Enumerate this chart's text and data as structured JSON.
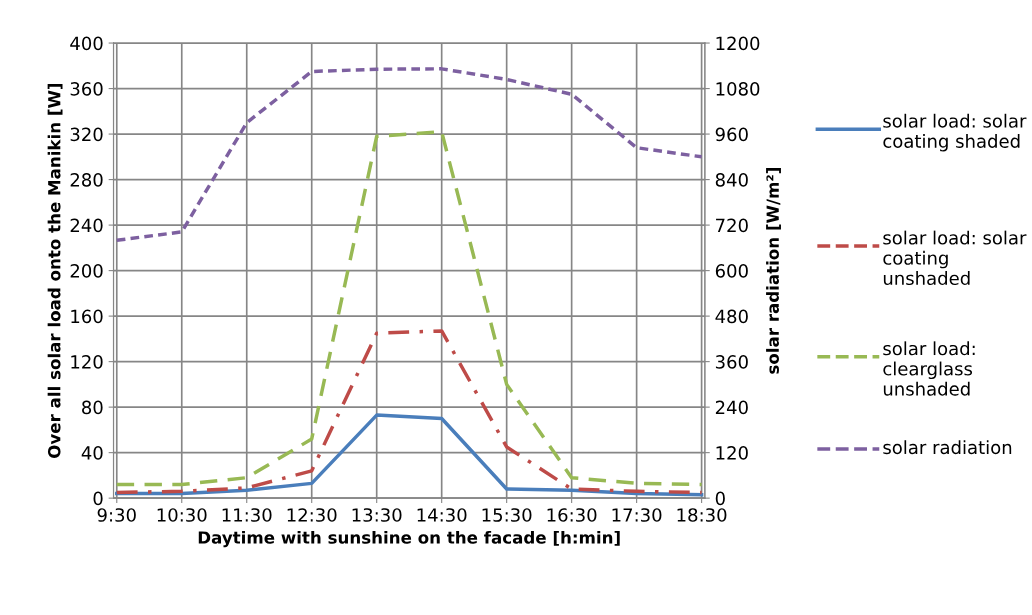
{
  "chart_data": {
    "type": "line",
    "categories": [
      "9:30",
      "10:30",
      "11:30",
      "12:30",
      "13:30",
      "14:30",
      "15:30",
      "16:30",
      "17:30",
      "18:30"
    ],
    "xlabel": "Daytime with sunshine on the facade [h:min]",
    "ylabel": "Over all solar load onto the Manikin [W]",
    "y2label": "solar radiation [W/m²]",
    "ylim": [
      0,
      400
    ],
    "yticks": [
      0,
      40,
      80,
      120,
      160,
      200,
      240,
      280,
      320,
      360,
      400
    ],
    "y2lim": [
      0,
      1200
    ],
    "y2ticks": [
      0,
      120,
      240,
      360,
      480,
      600,
      720,
      840,
      960,
      1080,
      1200
    ],
    "grid": true,
    "legend": "right",
    "marker": "none",
    "series": [
      {
        "name": "solar load: solar coating shaded",
        "color": "#4a7ebb",
        "line_style": "solid",
        "values": [
          4,
          4,
          7,
          13,
          73,
          70,
          8,
          7,
          4,
          3
        ]
      },
      {
        "name": "solar load: solar coating unshaded",
        "color": "#be4b48",
        "line_style": "dashdot",
        "values": [
          5,
          6,
          9,
          24,
          145,
          147,
          45,
          8,
          6,
          5
        ]
      },
      {
        "name": "solar load: clearglass unshaded",
        "color": "#98b954",
        "line_style": "dashed",
        "values": [
          12,
          12,
          18,
          52,
          318,
          322,
          100,
          18,
          13,
          12
        ]
      },
      {
        "name": "solar radiation",
        "color": "#7d60a0",
        "line_style": "dotted",
        "axis": "y2",
        "values": [
          680,
          702,
          990,
          1125,
          1131,
          1132,
          1104,
          1065,
          924,
          900
        ]
      }
    ]
  }
}
